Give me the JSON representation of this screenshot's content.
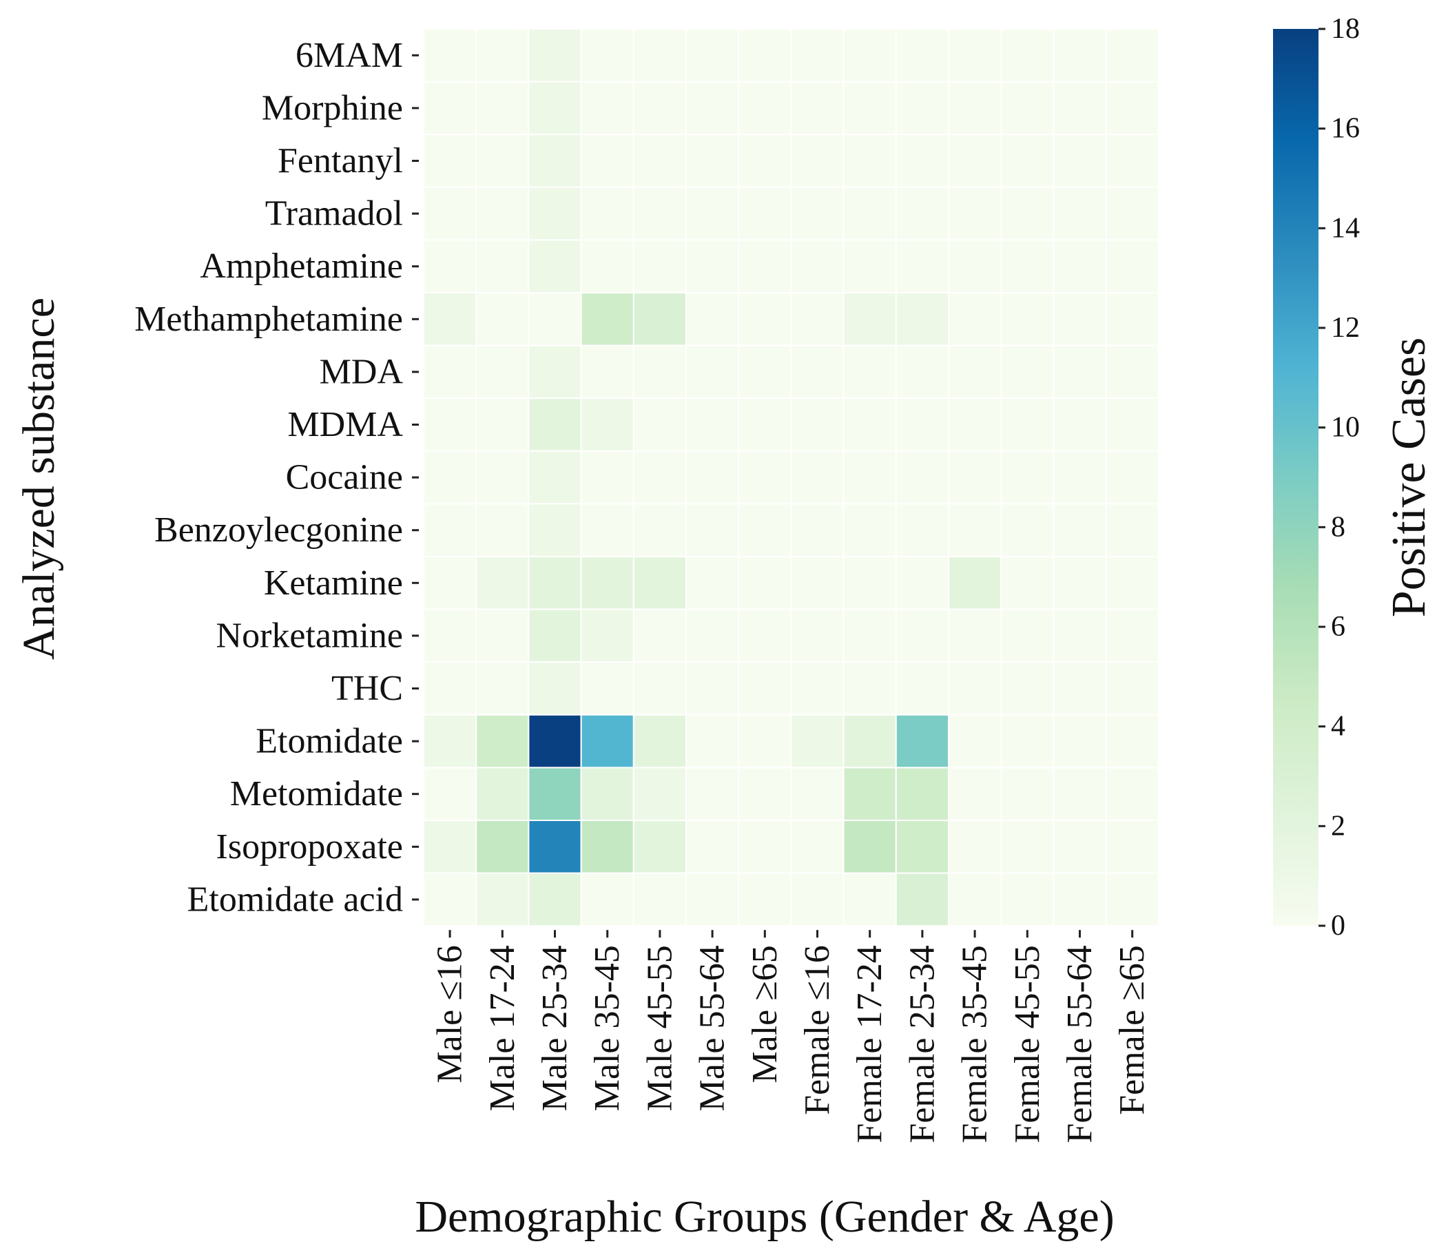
{
  "chart_data": {
    "type": "heatmap",
    "xlabel": "Demographic Groups (Gender & Age)",
    "ylabel": "Analyzed substance",
    "columns": [
      "Male ≤16",
      "Male 17-24",
      "Male 25-34",
      "Male 35-45",
      "Male 45-55",
      "Male 55-64",
      "Male ≥65",
      "Female ≤16",
      "Female 17-24",
      "Female 25-34",
      "Female 35-45",
      "Female 45-55",
      "Female 55-64",
      "Female ≥65"
    ],
    "rows": [
      "6MAM",
      "Morphine",
      "Fentanyl",
      "Tramadol",
      "Amphetamine",
      "Methamphetamine",
      "MDA",
      "MDMA",
      "Cocaine",
      "Benzoylecgonine",
      "Ketamine",
      "Norketamine",
      "THC",
      "Etomidate",
      "Metomidate",
      "Isopropoxate",
      "Etomidate acid"
    ],
    "values": [
      [
        0,
        0,
        1,
        0,
        0,
        0,
        0,
        0,
        0,
        0,
        0,
        0,
        0,
        0
      ],
      [
        0,
        0,
        1,
        0,
        0,
        0,
        0,
        0,
        0,
        0,
        0,
        0,
        0,
        0
      ],
      [
        0,
        0,
        1,
        0,
        0,
        0,
        0,
        0,
        0,
        0,
        0,
        0,
        0,
        0
      ],
      [
        0,
        0,
        1,
        0,
        0,
        0,
        0,
        0,
        0,
        0,
        0,
        0,
        0,
        0
      ],
      [
        0,
        0,
        1,
        0,
        0,
        0,
        0,
        0,
        0,
        0,
        0,
        0,
        0,
        0
      ],
      [
        1,
        0,
        0,
        4,
        3,
        0,
        0,
        0,
        1,
        1,
        0,
        0,
        0,
        0
      ],
      [
        0,
        0,
        1,
        0,
        0,
        0,
        0,
        0,
        0,
        0,
        0,
        0,
        0,
        0
      ],
      [
        0,
        0,
        2,
        1,
        0,
        0,
        0,
        0,
        0,
        0,
        0,
        0,
        0,
        0
      ],
      [
        0,
        0,
        1,
        0,
        0,
        0,
        0,
        0,
        0,
        0,
        0,
        0,
        0,
        0
      ],
      [
        0,
        0,
        1,
        0,
        0,
        0,
        0,
        0,
        0,
        0,
        0,
        0,
        0,
        0
      ],
      [
        0,
        1,
        2,
        2,
        2,
        0,
        0,
        0,
        0,
        0,
        2,
        0,
        0,
        0
      ],
      [
        0,
        0,
        2,
        1,
        0,
        0,
        0,
        0,
        0,
        0,
        0,
        0,
        0,
        0
      ],
      [
        0,
        0,
        1,
        0,
        0,
        0,
        0,
        0,
        0,
        0,
        0,
        0,
        0,
        0
      ],
      [
        1,
        4,
        18,
        11,
        2,
        0,
        0,
        1,
        2,
        9,
        0,
        0,
        0,
        0
      ],
      [
        0,
        2,
        8,
        2,
        1,
        0,
        0,
        0,
        4,
        4,
        0,
        0,
        0,
        0
      ],
      [
        1,
        5,
        14,
        5,
        2,
        0,
        0,
        0,
        5,
        4,
        0,
        0,
        0,
        0
      ],
      [
        0,
        1,
        2,
        0,
        0,
        0,
        0,
        0,
        0,
        3,
        0,
        0,
        0,
        0
      ]
    ],
    "colorbar": {
      "label": "Positive Cases",
      "min": 0,
      "max": 18,
      "ticks": [
        0,
        2,
        4,
        6,
        8,
        10,
        12,
        14,
        16,
        18
      ],
      "colormap": "GnBu",
      "colors": [
        "#f7fcf0",
        "#e0f3db",
        "#ccebc5",
        "#a8ddb5",
        "#7bccc4",
        "#4eb3d3",
        "#2b8cbe",
        "#0868ac",
        "#084081"
      ]
    }
  }
}
